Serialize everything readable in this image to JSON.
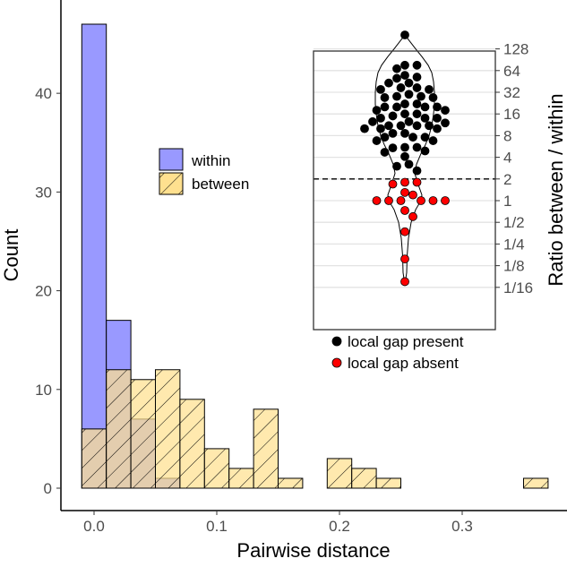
{
  "chart_data": [
    {
      "type": "bar",
      "subtype": "histogram",
      "xlabel": "Pairwise distance",
      "ylabel": "Count",
      "xlim": [
        -0.025,
        0.375
      ],
      "ylim": [
        0,
        47
      ],
      "xticks": [
        0.0,
        0.1,
        0.2,
        0.3
      ],
      "xtick_labels": [
        "0.0",
        "0.1",
        "0.2",
        "0.3"
      ],
      "yticks": [
        0,
        10,
        20,
        30,
        40
      ],
      "ytick_labels": [
        "0",
        "10",
        "20",
        "30",
        "40"
      ],
      "bin_width": 0.02,
      "bin_starts": [
        -0.01,
        0.01,
        0.03,
        0.05,
        0.07,
        0.09,
        0.11,
        0.13,
        0.15,
        0.17,
        0.19,
        0.21,
        0.23,
        0.25,
        0.27,
        0.29,
        0.31,
        0.33,
        0.35
      ],
      "series": [
        {
          "name": "within",
          "color": "#9999FF",
          "pattern": "solid",
          "values": [
            47,
            17,
            7,
            1,
            0,
            0,
            0,
            0,
            0,
            0,
            0,
            0,
            0,
            0,
            0,
            0,
            0,
            0,
            0
          ]
        },
        {
          "name": "between",
          "color": "#FFE08F",
          "pattern": "hatched",
          "values": [
            6,
            12,
            11,
            12,
            9,
            4,
            2,
            8,
            1,
            0,
            3,
            2,
            1,
            0,
            0,
            0,
            0,
            0,
            1
          ]
        }
      ],
      "legend": {
        "position": "center",
        "entries": [
          "within",
          "between"
        ]
      },
      "grid": false
    },
    {
      "type": "scatter",
      "subtype": "violin-beeswarm",
      "ylabel": "Ratio between / within",
      "yscale": "log2",
      "ytick_labels": [
        "128",
        "64",
        "32",
        "16",
        "8",
        "4",
        "2",
        "1",
        "1/2",
        "1/4",
        "1/8",
        "1/16"
      ],
      "ytick_values": [
        128,
        64,
        32,
        16,
        8,
        4,
        2,
        1,
        0.5,
        0.25,
        0.125,
        0.0625
      ],
      "threshold_line": 2,
      "grid": true,
      "legend": {
        "position": "bottom",
        "entries": [
          "local gap present",
          "local gap absent"
        ]
      },
      "series": [
        {
          "name": "local gap present",
          "color": "#000000",
          "values": [
            200,
            76,
            76,
            68,
            55,
            52,
            50,
            43,
            43,
            37,
            37,
            35,
            35,
            30,
            28,
            28,
            27,
            27,
            22,
            22,
            20,
            20,
            20,
            20,
            18,
            18,
            16,
            16,
            15,
            14,
            14,
            14,
            12.5,
            12.5,
            12,
            11,
            11,
            11,
            11,
            10,
            10,
            10,
            8.6,
            8.6,
            7.6,
            7.6,
            7.6,
            6.8,
            6.8,
            5.5,
            5.5,
            5.4,
            4.9,
            4.7,
            4.1,
            3.2,
            3.0,
            2.6
          ]
        },
        {
          "name": "local gap absent",
          "color": "#FF0000",
          "values": [
            1.8,
            1.8,
            1.7,
            1.3,
            1.2,
            1.0,
            1.0,
            1.0,
            1.0,
            1.0,
            1.0,
            0.73,
            0.6,
            0.37,
            0.155,
            0.075
          ]
        }
      ]
    }
  ]
}
